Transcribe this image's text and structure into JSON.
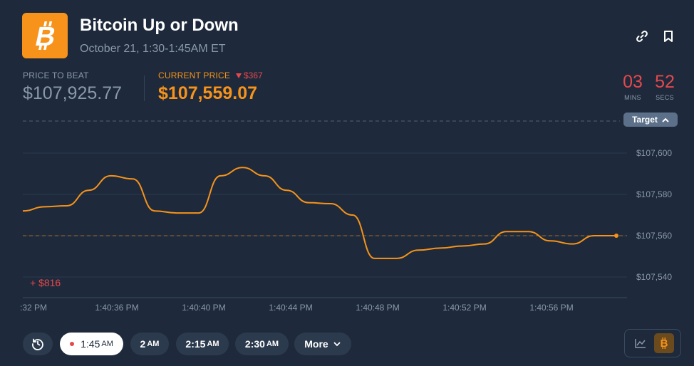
{
  "header": {
    "logo_icon": "bitcoin-icon",
    "title": "Bitcoin Up or Down",
    "subtitle": "October 21, 1:30-1:45AM ET",
    "actions": [
      {
        "icon": "link-icon"
      },
      {
        "icon": "bookmark-icon"
      }
    ]
  },
  "stats": {
    "price_to_beat_label": "PRICE TO BEAT",
    "price_to_beat": "$107,925.77",
    "current_price_label": "CURRENT PRICE",
    "current_price": "$107,559.07",
    "delta": "$367",
    "delta_icon": "down-triangle-icon"
  },
  "countdown": {
    "minutes": "03",
    "minutes_label": "MINS",
    "seconds": "52",
    "seconds_label": "SECS"
  },
  "chart_labels": {
    "target": "Target",
    "gain": "+ $816"
  },
  "chart_data": {
    "type": "line",
    "series": [
      {
        "color": "#f7931a",
        "points": [
          [
            "1:40:32 PM",
            107572
          ],
          [
            "1:40:33 PM",
            107574
          ],
          [
            "1:40:34 PM",
            107574.5
          ],
          [
            "1:40:35 PM",
            107582
          ],
          [
            "1:40:36 PM",
            107589
          ],
          [
            "1:40:37 PM",
            107587.5
          ],
          [
            "1:40:38 PM",
            107572
          ],
          [
            "1:40:39 PM",
            107571
          ],
          [
            "1:40:40 PM",
            107571
          ],
          [
            "1:40:41 PM",
            107589
          ],
          [
            "1:40:42 PM",
            107593
          ],
          [
            "1:40:43 PM",
            107589
          ],
          [
            "1:40:44 PM",
            107582
          ],
          [
            "1:40:45 PM",
            107576
          ],
          [
            "1:40:46 PM",
            107575.5
          ],
          [
            "1:40:47 PM",
            107570
          ],
          [
            "1:40:48 PM",
            107549
          ],
          [
            "1:40:49 PM",
            107549
          ],
          [
            "1:40:50 PM",
            107553
          ],
          [
            "1:40:51 PM",
            107554
          ],
          [
            "1:40:52 PM",
            107555
          ],
          [
            "1:40:53 PM",
            107556
          ],
          [
            "1:40:54 PM",
            107562
          ],
          [
            "1:40:55 PM",
            107562
          ],
          [
            "1:40:56 PM",
            107557.5
          ],
          [
            "1:40:57 PM",
            107556
          ],
          [
            "1:40:58 PM",
            107560
          ],
          [
            "1:40:59 PM",
            107560
          ]
        ]
      }
    ],
    "x_tick_labels": [
      ":32 PM",
      "1:40:36 PM",
      "1:40:40 PM",
      "1:40:44 PM",
      "1:40:48 PM",
      "1:40:52 PM",
      "1:40:56 PM"
    ],
    "y_tick_labels": [
      "$107,600",
      "$107,580",
      "$107,560",
      "$107,540"
    ],
    "y_ticks": [
      107600,
      107580,
      107560,
      107540
    ],
    "ylim": [
      107536,
      107608
    ],
    "target_line_value": 107925.77,
    "current_line_value": 107560,
    "grid": true
  },
  "time_controls": {
    "history_icon": "history-clock-icon",
    "buttons": [
      {
        "label": "1:45",
        "suffix": "AM",
        "active": true
      },
      {
        "label": "2",
        "suffix": "AM",
        "active": false
      },
      {
        "label": "2:15",
        "suffix": "AM",
        "active": false
      },
      {
        "label": "2:30",
        "suffix": "AM",
        "active": false
      }
    ],
    "more_label": "More"
  },
  "chart_toggle": {
    "options": [
      {
        "icon": "line-chart-icon",
        "active": false
      },
      {
        "icon": "bitcoin-icon",
        "active": true
      }
    ]
  },
  "colors": {
    "background": "#1e2a3b",
    "accent": "#f7931a",
    "negative": "#e5484d",
    "muted": "#8a98ab"
  }
}
